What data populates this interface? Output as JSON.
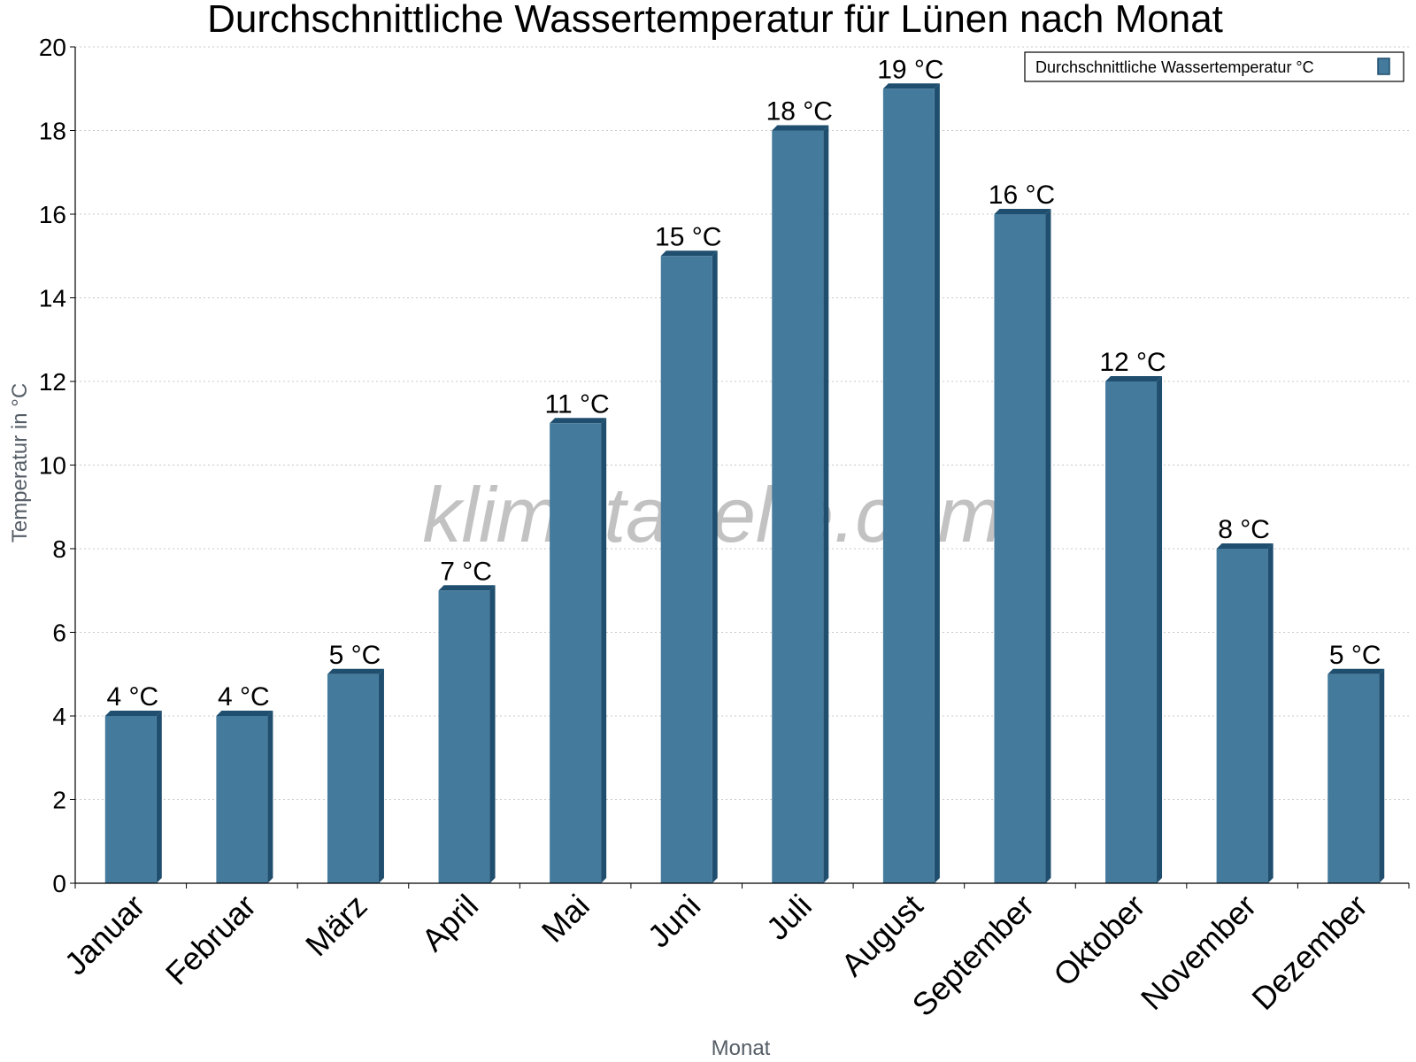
{
  "chart_data": {
    "type": "bar",
    "title": "Durchschnittliche Wassertemperatur für Lünen nach Monat",
    "xlabel": "Monat",
    "ylabel": "Temperatur in °C",
    "ylim": [
      0,
      20
    ],
    "yticks": [
      0,
      2,
      4,
      6,
      8,
      10,
      12,
      14,
      16,
      18,
      20
    ],
    "grid": true,
    "legend_position": "top-right",
    "categories": [
      "Januar",
      "Februar",
      "März",
      "April",
      "Mai",
      "Juni",
      "Juli",
      "August",
      "September",
      "Oktober",
      "November",
      "Dezember"
    ],
    "series": [
      {
        "name": "Durchschnittliche Wassertemperatur °C",
        "values": [
          4,
          4,
          5,
          7,
          11,
          15,
          18,
          19,
          16,
          12,
          8,
          5
        ],
        "data_labels": [
          "4 °C",
          "4 °C",
          "5 °C",
          "7 °C",
          "11 °C",
          "15 °C",
          "18 °C",
          "19 °C",
          "16 °C",
          "12 °C",
          "8 °C",
          "5 °C"
        ],
        "color": "#447a9c",
        "shade_color": "#1f4e6e"
      }
    ],
    "watermark": "klimatabelle.com"
  }
}
